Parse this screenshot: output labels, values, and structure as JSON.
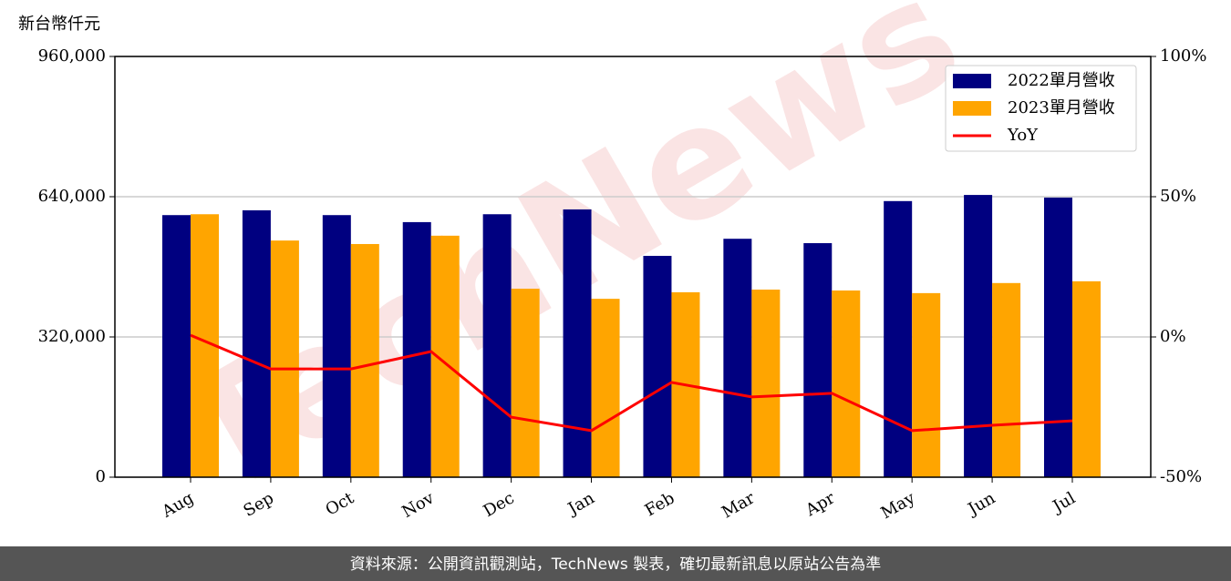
{
  "chart_data": {
    "type": "bar",
    "unit_label": "新台幣仟元",
    "watermark": "TechNews",
    "categories": [
      "Aug",
      "Sep",
      "Oct",
      "Nov",
      "Dec",
      "Jan",
      "Feb",
      "Mar",
      "Apr",
      "May",
      "Jun",
      "Jul"
    ],
    "series": [
      {
        "name": "2022單月營收",
        "color": "#000080",
        "values": [
          598000,
          609000,
          598000,
          582000,
          600000,
          611000,
          505000,
          544000,
          534000,
          630000,
          644000,
          638000
        ]
      },
      {
        "name": "2023單月營收",
        "color": "#ffa500",
        "values": [
          600000,
          540000,
          532000,
          551000,
          430000,
          407000,
          422000,
          428000,
          426000,
          420000,
          443000,
          447000
        ]
      },
      {
        "name": "YoY",
        "type": "line",
        "axis": "y2",
        "color": "#ff0000",
        "values": [
          0.6,
          -11.4,
          -11.4,
          -5.2,
          -28.6,
          -33.4,
          -16.2,
          -21.4,
          -20.1,
          -33.4,
          -31.5,
          -29.9
        ]
      }
    ],
    "ylim": [
      0,
      960000
    ],
    "yticks": [
      0,
      {
        "value": 320000,
        "label": "320,000"
      },
      {
        "value": 640000,
        "label": "640,000"
      },
      {
        "value": 960000,
        "label": "960,000"
      }
    ],
    "y2lim": [
      -50,
      100
    ],
    "y2ticks": [
      {
        "value": -50,
        "label": "-50%"
      },
      {
        "value": 0,
        "label": "0%"
      },
      {
        "value": 50,
        "label": "50%"
      },
      {
        "value": 100,
        "label": "100%"
      }
    ],
    "grid": true,
    "legend": "upper right",
    "footer": "資料來源：公開資訊觀測站，TechNews 製表，確切最新訊息以原站公告為準"
  }
}
